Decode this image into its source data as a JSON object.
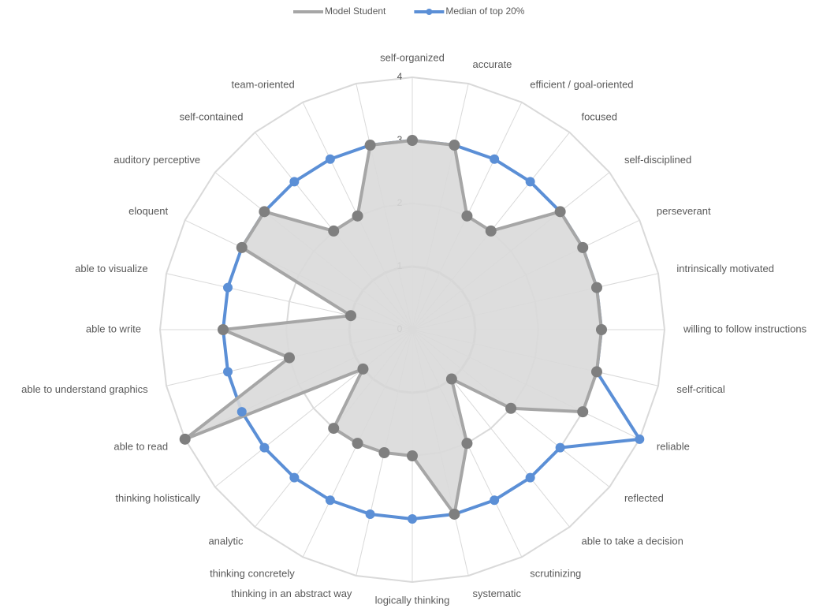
{
  "chart_data": {
    "type": "radar",
    "categories": [
      "self-organized",
      "accurate",
      "efficient / goal-oriented",
      "focused",
      "self-disciplined",
      "perseverant",
      "intrinsically motivated",
      "willing to follow instructions",
      "self-critical",
      "reliable",
      "reflected",
      "able to take a decision",
      "scrutinizing",
      "systematic",
      "logically thinking",
      "thinking in an abstract way",
      "thinking concretely",
      "analytic",
      "thinking holistically",
      "able to read",
      "able to understand graphics",
      "able to write",
      "able to visualize",
      "eloquent",
      "auditory perceptive",
      "self-contained",
      "team-oriented",
      null
    ],
    "series": [
      {
        "name": "Model Student",
        "color": "#a6a6a6",
        "marker_color": "#7f7f7f",
        "fill": "#d9d9d9",
        "values": [
          3,
          3,
          2,
          2,
          3,
          3,
          3,
          3,
          3,
          3,
          2,
          1,
          2,
          3,
          2,
          2,
          2,
          2,
          1,
          4,
          2,
          3,
          1,
          3,
          3,
          2,
          2,
          3
        ]
      },
      {
        "name": "Median of top 20%",
        "color": "#5b8fd6",
        "marker_color": "#5b8fd6",
        "values": [
          3,
          3,
          3,
          3,
          3,
          3,
          3,
          3,
          3,
          4,
          3,
          3,
          3,
          3,
          3,
          3,
          3,
          3,
          3,
          3,
          3,
          3,
          3,
          3,
          3,
          3,
          3,
          3
        ]
      }
    ],
    "ylim": [
      0,
      4
    ],
    "yticks": [
      0,
      1,
      2,
      3,
      4
    ],
    "grid": true,
    "legend": "top"
  }
}
